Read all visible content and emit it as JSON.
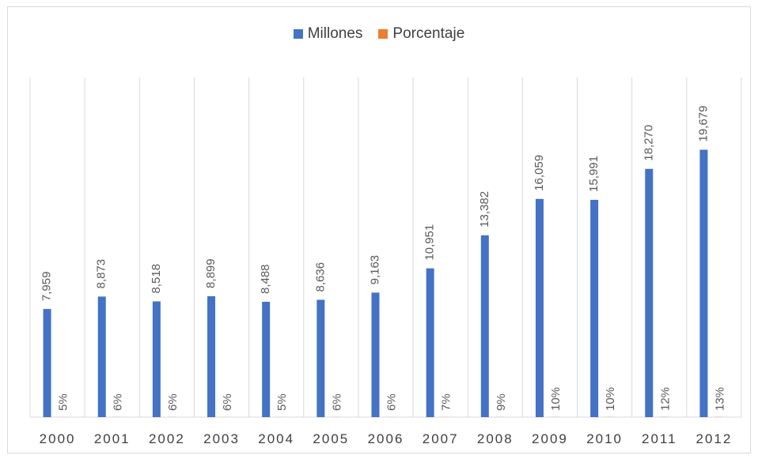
{
  "chart_data": {
    "type": "bar",
    "title": "",
    "xlabel": "",
    "ylabel": "",
    "categories": [
      "2000",
      "2001",
      "2002",
      "2003",
      "2004",
      "2005",
      "2006",
      "2007",
      "2008",
      "2009",
      "2010",
      "2011",
      "2012"
    ],
    "series": [
      {
        "name": "Millones",
        "color": "#4472c4",
        "values": [
          7959,
          8873,
          8518,
          8899,
          8488,
          8636,
          9163,
          10951,
          13382,
          16059,
          15991,
          18270,
          19679
        ],
        "labels": [
          "7,959",
          "8,873",
          "8,518",
          "8,899",
          "8,488",
          "8,636",
          "9,163",
          "10,951",
          "13,382",
          "16,059",
          "15,991",
          "18,270",
          "19,679"
        ]
      },
      {
        "name": "Porcentaje",
        "color": "#ed7d31",
        "values": [
          5,
          6,
          6,
          6,
          5,
          6,
          6,
          7,
          9,
          10,
          10,
          12,
          13
        ],
        "labels": [
          "5%",
          "6%",
          "6%",
          "6%",
          "5%",
          "6%",
          "6%",
          "7%",
          "9%",
          "10%",
          "10%",
          "12%",
          "13%"
        ]
      }
    ],
    "ylim": [
      0,
      25000
    ],
    "grid": "vertical",
    "legend": "top-center",
    "data_labels": "rotated-vertical"
  }
}
